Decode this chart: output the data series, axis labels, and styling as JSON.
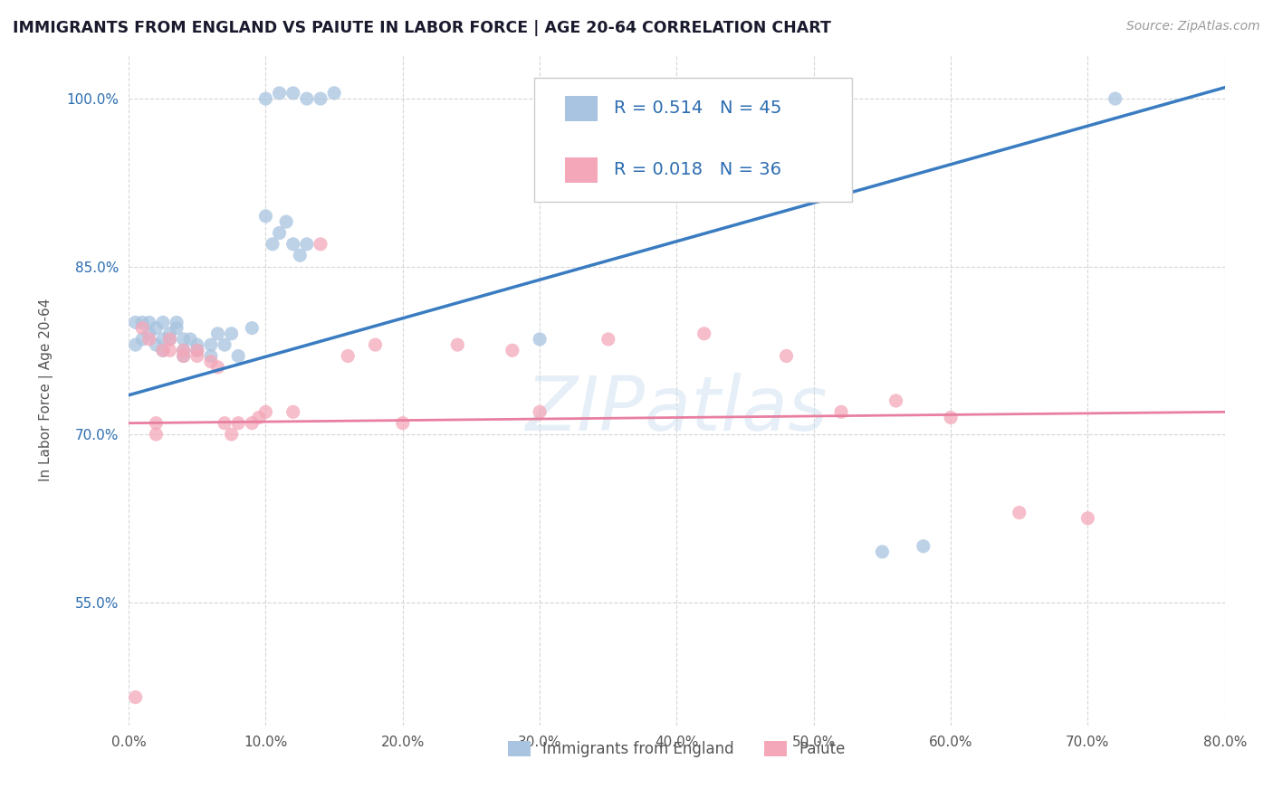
{
  "title": "IMMIGRANTS FROM ENGLAND VS PAIUTE IN LABOR FORCE | AGE 20-64 CORRELATION CHART",
  "source_text": "Source: ZipAtlas.com",
  "ylabel": "In Labor Force | Age 20-64",
  "watermark": "ZIPatlas",
  "xlim": [
    0.0,
    0.8
  ],
  "ylim": [
    0.44,
    1.04
  ],
  "xticks": [
    0.0,
    0.1,
    0.2,
    0.3,
    0.4,
    0.5,
    0.6,
    0.7,
    0.8
  ],
  "xtick_labels": [
    "0.0%",
    "10.0%",
    "20.0%",
    "30.0%",
    "40.0%",
    "50.0%",
    "60.0%",
    "70.0%",
    "80.0%"
  ],
  "yticks": [
    0.55,
    0.7,
    0.85,
    1.0
  ],
  "ytick_labels": [
    "55.0%",
    "70.0%",
    "85.0%",
    "100.0%"
  ],
  "legend_R1": "R = 0.514",
  "legend_N1": "N = 45",
  "legend_R2": "R = 0.018",
  "legend_N2": "N = 36",
  "color_england": "#a8c4e0",
  "color_paiute": "#f4a7b9",
  "color_england_line": "#3a7cc1",
  "color_paiute_line": "#e87fa0",
  "color_text_blue": "#2b6cb0",
  "color_title": "#1a1a2e",
  "england_x": [
    0.005,
    0.005,
    0.01,
    0.01,
    0.015,
    0.015,
    0.02,
    0.02,
    0.025,
    0.025,
    0.025,
    0.03,
    0.03,
    0.035,
    0.035,
    0.04,
    0.04,
    0.04,
    0.045,
    0.05,
    0.05,
    0.06,
    0.06,
    0.065,
    0.07,
    0.075,
    0.08,
    0.09,
    0.1,
    0.11,
    0.12,
    0.13,
    0.14,
    0.15,
    0.1,
    0.105,
    0.11,
    0.115,
    0.12,
    0.125,
    0.13,
    0.3,
    0.55,
    0.58,
    0.72
  ],
  "england_y": [
    0.8,
    0.78,
    0.8,
    0.785,
    0.8,
    0.79,
    0.795,
    0.78,
    0.8,
    0.785,
    0.775,
    0.79,
    0.785,
    0.795,
    0.8,
    0.785,
    0.775,
    0.77,
    0.785,
    0.78,
    0.775,
    0.78,
    0.77,
    0.79,
    0.78,
    0.79,
    0.77,
    0.795,
    1.0,
    1.005,
    1.005,
    1.0,
    1.0,
    1.005,
    0.895,
    0.87,
    0.88,
    0.89,
    0.87,
    0.86,
    0.87,
    0.785,
    0.595,
    0.6,
    1.0
  ],
  "paiute_x": [
    0.005,
    0.01,
    0.015,
    0.02,
    0.02,
    0.025,
    0.03,
    0.03,
    0.04,
    0.04,
    0.05,
    0.05,
    0.06,
    0.065,
    0.07,
    0.075,
    0.08,
    0.09,
    0.095,
    0.1,
    0.12,
    0.14,
    0.16,
    0.18,
    0.2,
    0.24,
    0.28,
    0.3,
    0.35,
    0.42,
    0.48,
    0.52,
    0.56,
    0.6,
    0.65,
    0.7
  ],
  "paiute_y": [
    0.465,
    0.795,
    0.785,
    0.71,
    0.7,
    0.775,
    0.785,
    0.775,
    0.775,
    0.77,
    0.775,
    0.77,
    0.765,
    0.76,
    0.71,
    0.7,
    0.71,
    0.71,
    0.715,
    0.72,
    0.72,
    0.87,
    0.77,
    0.78,
    0.71,
    0.78,
    0.775,
    0.72,
    0.785,
    0.79,
    0.77,
    0.72,
    0.73,
    0.715,
    0.63,
    0.625
  ],
  "england_trend_x": [
    0.0,
    0.8
  ],
  "england_trend_y": [
    0.735,
    1.01
  ],
  "paiute_trend_x": [
    0.0,
    0.8
  ],
  "paiute_trend_y": [
    0.71,
    0.72
  ],
  "grid_color": "#cccccc",
  "background_color": "#ffffff",
  "legend_entries": [
    "Immigrants from England",
    "Paiute"
  ]
}
